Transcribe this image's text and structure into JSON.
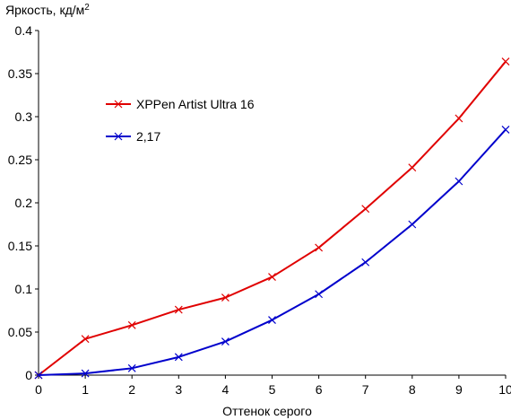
{
  "chart_data": {
    "type": "line",
    "ylabel": "Яркость, кд/м",
    "ylabel_sup": "2",
    "xlabel": "Оттенок серого",
    "x": [
      0,
      1,
      2,
      3,
      4,
      5,
      6,
      7,
      8,
      9,
      10
    ],
    "xlim": [
      0,
      10
    ],
    "ylim": [
      0,
      0.4
    ],
    "x_ticks": [
      "0",
      "1",
      "2",
      "3",
      "4",
      "5",
      "6",
      "7",
      "8",
      "9",
      "10"
    ],
    "y_ticks": [
      "0",
      "0.05",
      "0.1",
      "0.15",
      "0.2",
      "0.25",
      "0.3",
      "0.35",
      "0.4"
    ],
    "grid": false,
    "legend_position": "upper-left",
    "series": [
      {
        "name": "XPPen Artist Ultra 16",
        "color": "#e00000",
        "values": [
          0.0,
          0.042,
          0.058,
          0.076,
          0.09,
          0.114,
          0.148,
          0.193,
          0.241,
          0.298,
          0.364
        ]
      },
      {
        "name": "2,17",
        "color": "#0000cc",
        "values": [
          0.0,
          0.002,
          0.008,
          0.021,
          0.039,
          0.064,
          0.094,
          0.131,
          0.175,
          0.225,
          0.285
        ]
      }
    ]
  }
}
